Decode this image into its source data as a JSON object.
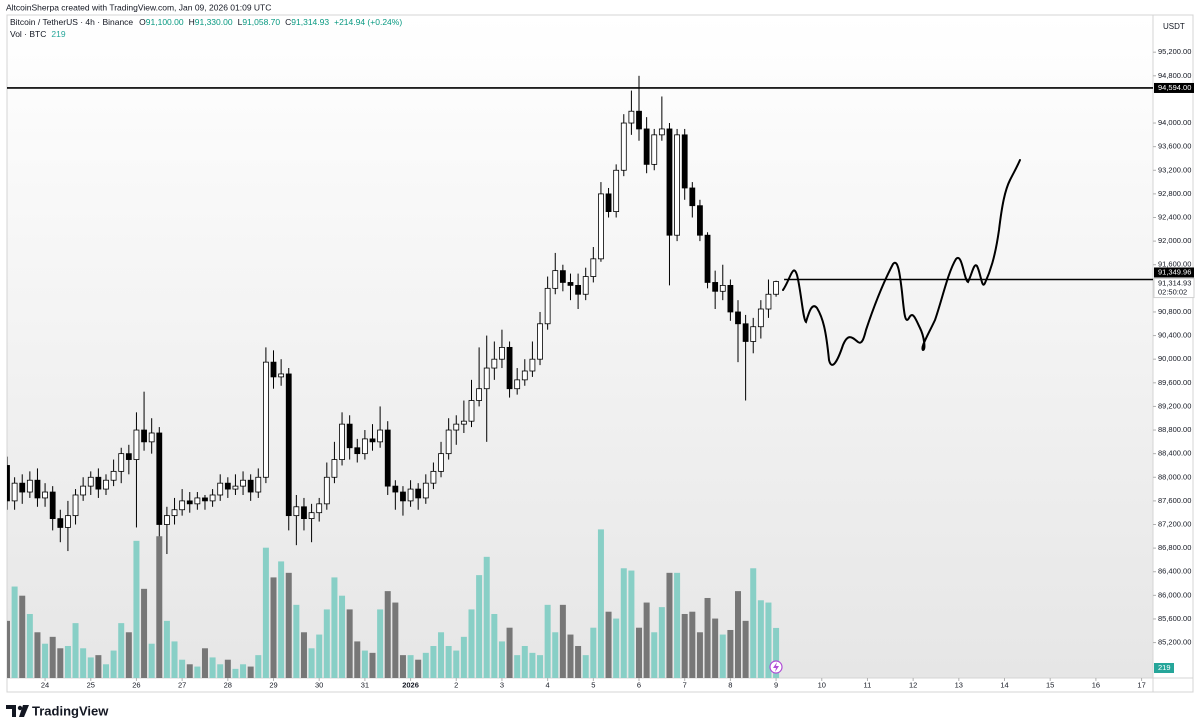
{
  "header": {
    "credit": "AltcoinSherpa created with TradingView.com, Jan 09, 2026 01:09 UTC",
    "symbol": "Bitcoin / TetherUS · 4h · Binance",
    "ohlc": [
      {
        "key": "O",
        "value": "91,100.00"
      },
      {
        "key": "H",
        "value": "91,330.00"
      },
      {
        "key": "L",
        "value": "91,058.70"
      },
      {
        "key": "C",
        "value": "91,314.93"
      }
    ],
    "change": "+214.94 (+0.24%)",
    "volume_label": "Vol · BTC"
  },
  "currency": "USDT",
  "footer": "TradingView",
  "chart_data": {
    "type": "candlestick",
    "x": [
      -20,
      -16,
      -12,
      -8,
      -4,
      0,
      4,
      8,
      12,
      16,
      20,
      24,
      28,
      32,
      36,
      40,
      44,
      48,
      52,
      56,
      60,
      64,
      68,
      72,
      76,
      80,
      84,
      88,
      92,
      96,
      100,
      104,
      108,
      112,
      116,
      120,
      124,
      128,
      132,
      136,
      140,
      144,
      148,
      152,
      156,
      160,
      164,
      168,
      172,
      176,
      180,
      184,
      188,
      192,
      196,
      200,
      204,
      208,
      212,
      216,
      220,
      224,
      228,
      232,
      236,
      240,
      244,
      248,
      252,
      256,
      260,
      264,
      268,
      272,
      276,
      280,
      284,
      288,
      292,
      296,
      300,
      304,
      308,
      312,
      316,
      320,
      324,
      328,
      332,
      336,
      340,
      344,
      348,
      352,
      356,
      360,
      364,
      368,
      372,
      376,
      380,
      384
    ],
    "open": [
      88200,
      87600,
      87900,
      87750,
      87950,
      87650,
      87750,
      87300,
      87150,
      87350,
      87700,
      87850,
      88000,
      87800,
      87950,
      88100,
      88400,
      88300,
      88800,
      88600,
      88750,
      87200,
      87350,
      87450,
      87600,
      87550,
      87650,
      87600,
      87700,
      87900,
      87800,
      87850,
      87950,
      87750,
      88000,
      89950,
      89700,
      89750,
      87350,
      87500,
      87300,
      87400,
      87550,
      88000,
      88300,
      88900,
      88500,
      88400,
      88650,
      88600,
      88800,
      87850,
      87750,
      87600,
      87800,
      87650,
      87900,
      88100,
      88400,
      88800,
      88900,
      88950,
      89300,
      89500,
      89850,
      90000,
      90200,
      89500,
      89650,
      89800,
      90000,
      90600,
      91200,
      91500,
      91300,
      91250,
      91100,
      91400,
      91700,
      92800,
      92500,
      93200,
      94000,
      94200,
      93900,
      93300,
      93800,
      93900,
      92100,
      93800,
      92900,
      92600,
      92100,
      91300,
      91150,
      91250,
      90800,
      90600,
      90300,
      90550,
      90850,
      91100
    ],
    "high": [
      88350,
      88000,
      88050,
      88100,
      88150,
      87900,
      87850,
      87450,
      87600,
      87800,
      88000,
      88100,
      88150,
      88050,
      88300,
      88500,
      88550,
      89100,
      89450,
      89000,
      88850,
      87500,
      87650,
      87800,
      87750,
      87750,
      87700,
      87800,
      88050,
      88000,
      88050,
      88100,
      88050,
      88150,
      90200,
      90150,
      90000,
      89850,
      87700,
      87650,
      87550,
      87650,
      88250,
      88600,
      89100,
      89050,
      88650,
      88800,
      88900,
      89200,
      88950,
      87950,
      87850,
      87950,
      87900,
      88050,
      88250,
      88600,
      89000,
      89050,
      89300,
      89650,
      90200,
      90400,
      90300,
      90500,
      90300,
      89850,
      90000,
      90300,
      90800,
      91400,
      91800,
      91600,
      91450,
      91450,
      91550,
      91900,
      93000,
      92900,
      93300,
      94150,
      94550,
      94800,
      94100,
      93900,
      94450,
      94000,
      93900,
      93900,
      93000,
      92700,
      92150,
      91500,
      91600,
      91350,
      91000,
      90750,
      90700,
      91000,
      91350,
      91330
    ],
    "low": [
      87450,
      87450,
      87550,
      87650,
      87500,
      87500,
      87100,
      86900,
      86750,
      87200,
      87600,
      87700,
      87650,
      87700,
      87850,
      87900,
      88050,
      87150,
      88450,
      88400,
      87000,
      86700,
      87200,
      87350,
      87400,
      87450,
      87450,
      87500,
      87600,
      87650,
      87700,
      87700,
      87600,
      87650,
      87900,
      89500,
      89550,
      87100,
      86850,
      87100,
      86900,
      87250,
      87450,
      87900,
      88200,
      88300,
      88250,
      88300,
      88450,
      88500,
      87700,
      87450,
      87350,
      87500,
      87450,
      87550,
      87800,
      88000,
      88300,
      88550,
      88750,
      88850,
      89200,
      88600,
      89650,
      89850,
      89350,
      89400,
      89550,
      89700,
      89900,
      90500,
      91100,
      91150,
      91000,
      90850,
      91000,
      91300,
      91650,
      92400,
      92400,
      93100,
      93800,
      93700,
      93150,
      93200,
      93700,
      91250,
      92000,
      92700,
      92400,
      92000,
      91200,
      90850,
      91000,
      90650,
      89950,
      89300,
      90100,
      90350,
      90700,
      91058.7
    ],
    "close": [
      87600,
      87900,
      87750,
      87950,
      87650,
      87750,
      87300,
      87150,
      87350,
      87700,
      87850,
      88000,
      87800,
      87950,
      88100,
      88400,
      88300,
      88800,
      88600,
      88750,
      87200,
      87350,
      87450,
      87600,
      87550,
      87650,
      87600,
      87700,
      87900,
      87800,
      87850,
      87950,
      87750,
      88000,
      89950,
      89700,
      89750,
      87350,
      87500,
      87300,
      87400,
      87550,
      88000,
      88300,
      88900,
      88500,
      88400,
      88650,
      88600,
      88800,
      87850,
      87750,
      87600,
      87800,
      87650,
      87900,
      88100,
      88400,
      88800,
      88900,
      88950,
      89300,
      89500,
      89850,
      90000,
      90200,
      89500,
      89650,
      89800,
      90000,
      90600,
      91200,
      91500,
      91300,
      91250,
      91100,
      91400,
      91700,
      92800,
      92500,
      93200,
      94000,
      94200,
      93900,
      93300,
      93800,
      93900,
      92100,
      93800,
      92900,
      92600,
      92100,
      91300,
      91150,
      91250,
      90800,
      90600,
      90300,
      90550,
      90850,
      91100,
      91314.93
    ],
    "up_color": "#ffffff",
    "down_color": "#000000",
    "volume": {
      "values": [
        250,
        400,
        360,
        280,
        200,
        150,
        180,
        130,
        140,
        240,
        130,
        90,
        100,
        60,
        120,
        240,
        200,
        600,
        390,
        150,
        620,
        250,
        160,
        80,
        60,
        50,
        130,
        90,
        60,
        80,
        40,
        60,
        50,
        100,
        570,
        440,
        510,
        460,
        320,
        200,
        130,
        190,
        300,
        440,
        360,
        300,
        160,
        120,
        110,
        300,
        380,
        330,
        100,
        100,
        80,
        110,
        140,
        200,
        140,
        120,
        180,
        300,
        450,
        530,
        280,
        160,
        220,
        100,
        140,
        110,
        100,
        320,
        200,
        320,
        190,
        140,
        100,
        220,
        650,
        290,
        260,
        480,
        470,
        220,
        330,
        200,
        310,
        460,
        460,
        280,
        290,
        200,
        350,
        260,
        190,
        210,
        380,
        250,
        480,
        340,
        330,
        219
      ],
      "up_color": "#88cfc6",
      "down_color": "#777777",
      "ylim": [
        0,
        2900
      ]
    },
    "xlim": [
      -20,
      582
    ],
    "xticks": [
      {
        "value": 0,
        "label": "24"
      },
      {
        "value": 24,
        "label": "25"
      },
      {
        "value": 48,
        "label": "26"
      },
      {
        "value": 72,
        "label": "27"
      },
      {
        "value": 96,
        "label": "28"
      },
      {
        "value": 120,
        "label": "29"
      },
      {
        "value": 144,
        "label": "30"
      },
      {
        "value": 168,
        "label": "31"
      },
      {
        "value": 192,
        "label": "2026"
      },
      {
        "value": 216,
        "label": "2"
      },
      {
        "value": 240,
        "label": "3"
      },
      {
        "value": 264,
        "label": "4"
      },
      {
        "value": 288,
        "label": "5"
      },
      {
        "value": 312,
        "label": "6"
      },
      {
        "value": 336,
        "label": "7"
      },
      {
        "value": 360,
        "label": "8"
      },
      {
        "value": 384,
        "label": "9"
      },
      {
        "value": 408,
        "label": "10"
      },
      {
        "value": 432,
        "label": "11"
      },
      {
        "value": 456,
        "label": "12"
      },
      {
        "value": 480,
        "label": "13"
      },
      {
        "value": 504,
        "label": "14"
      },
      {
        "value": 528,
        "label": "15"
      },
      {
        "value": 552,
        "label": "16"
      },
      {
        "value": 576,
        "label": "17"
      }
    ],
    "ylim": [
      84600,
      95830
    ],
    "yticks": [
      {
        "value": 85200,
        "label": "85,200.00"
      },
      {
        "value": 85600,
        "label": "85,600.00"
      },
      {
        "value": 86000,
        "label": "86,000.00"
      },
      {
        "value": 86400,
        "label": "86,400.00"
      },
      {
        "value": 86800,
        "label": "86,800.00"
      },
      {
        "value": 87200,
        "label": "87,200.00"
      },
      {
        "value": 87600,
        "label": "87,600.00"
      },
      {
        "value": 88000,
        "label": "88,000.00"
      },
      {
        "value": 88400,
        "label": "88,400.00"
      },
      {
        "value": 88800,
        "label": "88,800.00"
      },
      {
        "value": 89200,
        "label": "89,200.00"
      },
      {
        "value": 89600,
        "label": "89,600.00"
      },
      {
        "value": 90000,
        "label": "90,000.00"
      },
      {
        "value": 90400,
        "label": "90,400.00"
      },
      {
        "value": 90800,
        "label": "90,800.00"
      },
      {
        "value": 91600,
        "label": "91,600.00"
      },
      {
        "value": 92000,
        "label": "92,000.00"
      },
      {
        "value": 92400,
        "label": "92,400.00"
      },
      {
        "value": 92800,
        "label": "92,800.00"
      },
      {
        "value": 93200,
        "label": "93,200.00"
      },
      {
        "value": 93600,
        "label": "93,600.00"
      },
      {
        "value": 94000,
        "label": "94,000.00"
      },
      {
        "value": 94800,
        "label": "94,800.00"
      },
      {
        "value": 95200,
        "label": "95,200.00"
      }
    ],
    "levels": [
      {
        "value": 94594,
        "label": "94,594.00"
      },
      {
        "value": 91349.96,
        "label": "91,349.96"
      }
    ],
    "last_price_label": "91,314.93",
    "countdown": "02:50:02",
    "grid": false
  }
}
